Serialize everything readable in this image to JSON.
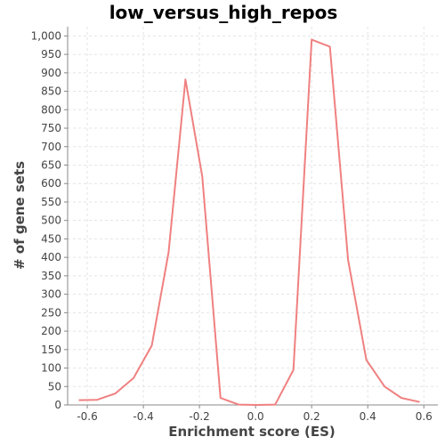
{
  "chart_data": {
    "type": "line",
    "title": "low_versus_high_repos",
    "xlabel": "Enrichment score (ES)",
    "ylabel": "# of gene sets",
    "xlim": [
      -0.67,
      0.65
    ],
    "ylim": [
      0,
      1025
    ],
    "grid": true,
    "legend": "none",
    "line_color": "#f08080",
    "x_ticks": [
      -0.6,
      -0.4,
      -0.2,
      0.0,
      0.2,
      0.4,
      0.6
    ],
    "x_tick_labels": [
      "-0.6",
      "-0.4",
      "-0.2",
      "0.0",
      "0.2",
      "0.4",
      "0.6"
    ],
    "y_ticks": [
      0,
      50,
      100,
      150,
      200,
      250,
      300,
      350,
      400,
      450,
      500,
      550,
      600,
      650,
      700,
      750,
      800,
      850,
      900,
      950,
      1000
    ],
    "y_tick_labels": [
      "0",
      "50",
      "100",
      "150",
      "200",
      "250",
      "300",
      "350",
      "400",
      "450",
      "500",
      "550",
      "600",
      "650",
      "700",
      "750",
      "800",
      "850",
      "900",
      "950",
      "1,000"
    ],
    "series": [
      {
        "x": [
          -0.63,
          -0.565,
          -0.5,
          -0.435,
          -0.37,
          -0.31,
          -0.25,
          -0.19,
          -0.125,
          -0.06,
          0.005,
          0.07,
          0.135,
          0.2,
          0.265,
          0.33,
          0.395,
          0.46,
          0.52,
          0.585
        ],
        "values": [
          13,
          14,
          31,
          73,
          161,
          414,
          882,
          619,
          19,
          1,
          0,
          1,
          95,
          990,
          971,
          392,
          122,
          50,
          19,
          8
        ]
      }
    ]
  }
}
